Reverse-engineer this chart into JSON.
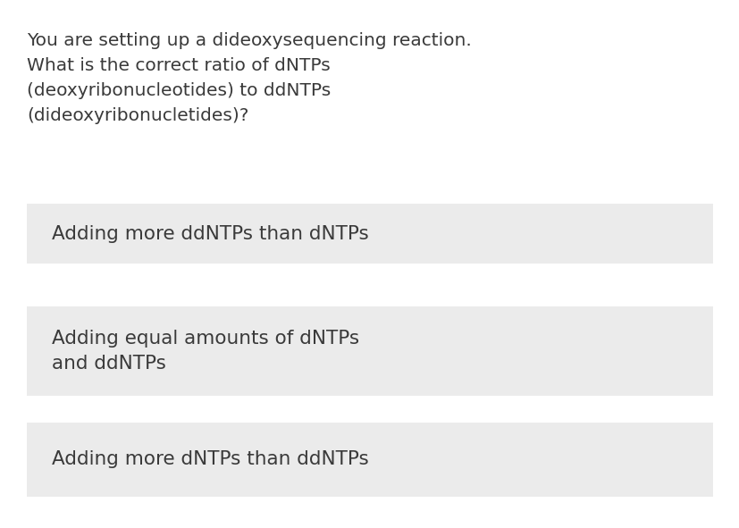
{
  "background_color": "#ffffff",
  "question_lines": [
    "You are setting up a dideoxysequencing reaction.",
    "What is the correct ratio of dNTPs",
    "(deoxyribonucleotides) to ddNTPs",
    "(dideoxyribonucletides)?"
  ],
  "options": [
    "Adding more ddNTPs than dNTPs",
    "Adding equal amounts of dNTPs\nand ddNTPs",
    "Adding more dNTPs than ddNTPs"
  ],
  "question_color": "#3a3a3a",
  "option_text_color": "#3a3a3a",
  "option_bg_color": "#ebebeb",
  "question_fontsize": 14.5,
  "option_fontsize": 15.5,
  "fig_width": 8.28,
  "fig_height": 5.91,
  "dpi": 100
}
